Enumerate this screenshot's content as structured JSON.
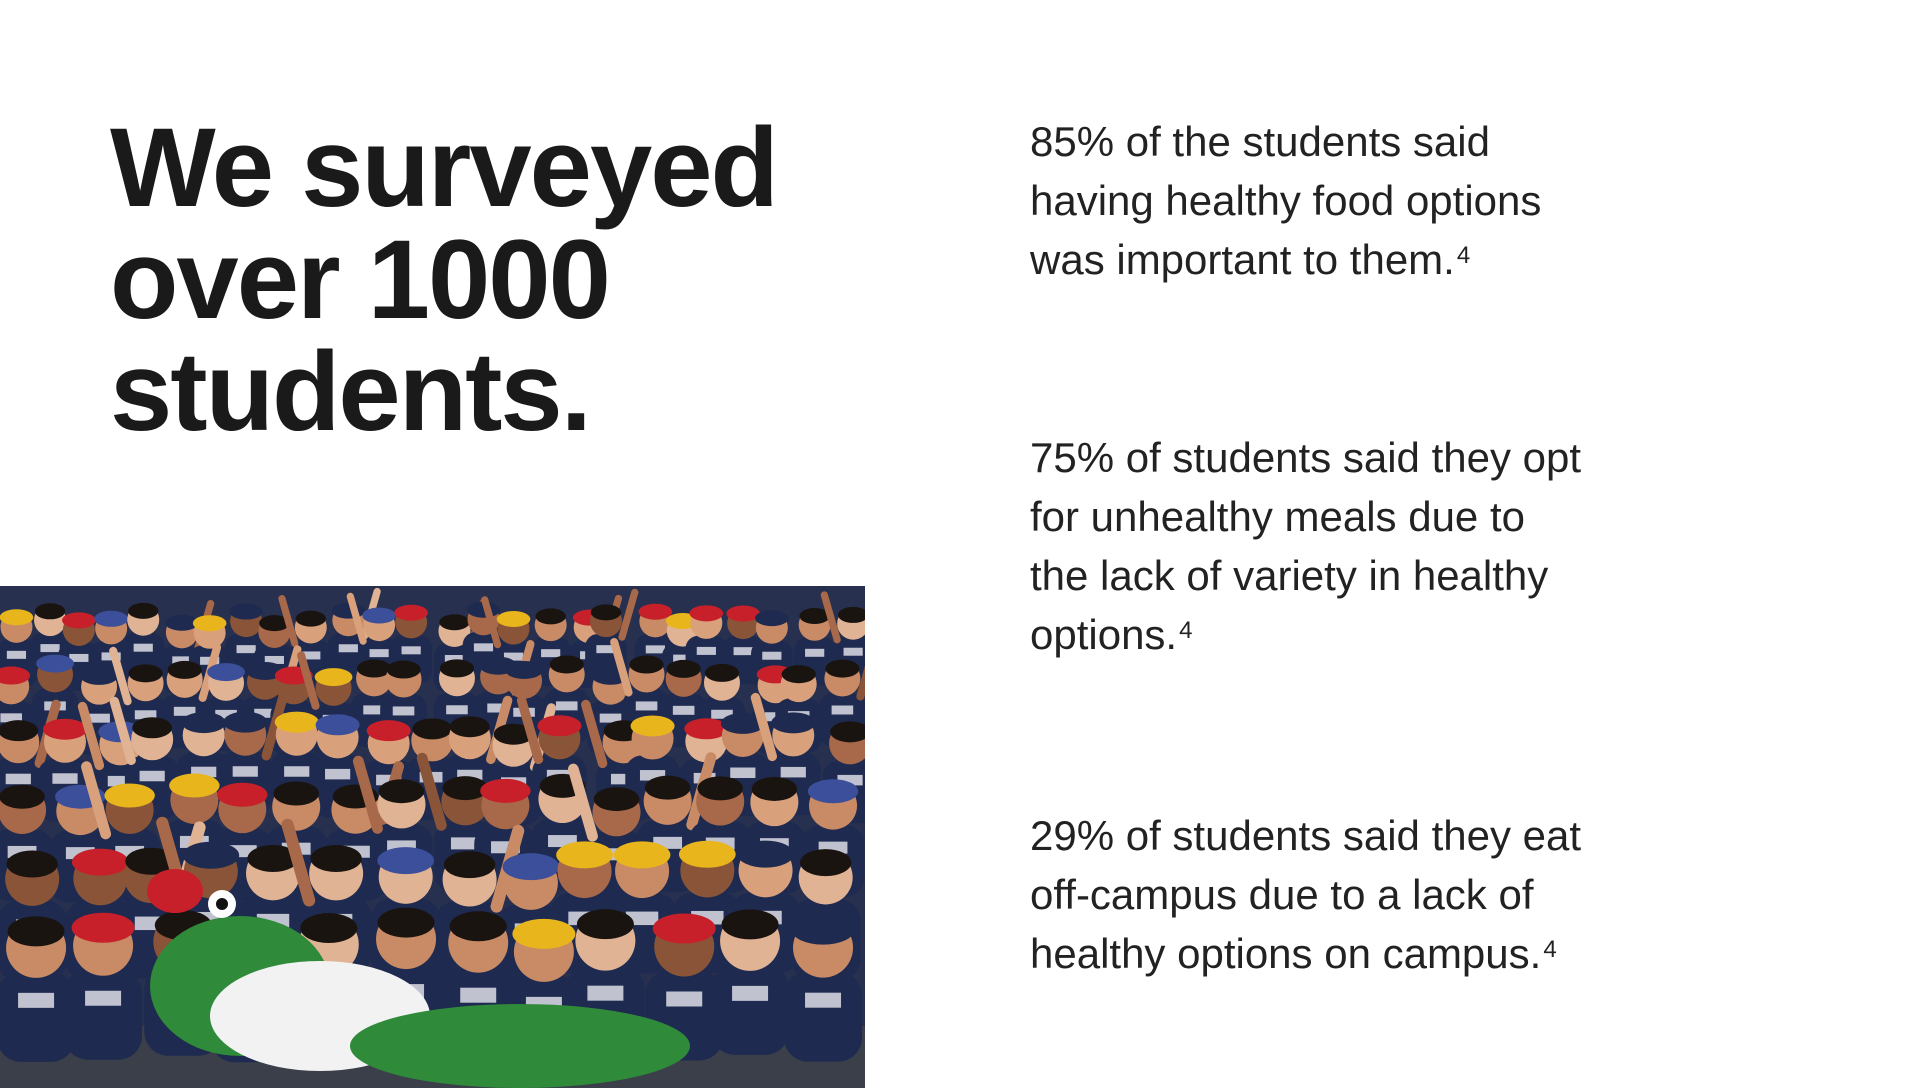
{
  "slide": {
    "headline_lines": [
      "We surveyed",
      "over 1000",
      "students."
    ]
  },
  "stats": [
    {
      "lines": [
        "85% of the students said",
        "having healthy food options",
        "was important to them."
      ],
      "footnote": "4"
    },
    {
      "lines": [
        "75% of students said they opt",
        "for unhealthy meals due to",
        "the lack of variety in healthy",
        "options."
      ],
      "footnote": "4"
    },
    {
      "lines": [
        "29% of students said they eat",
        "off-campus due to a lack of",
        "healthy options on campus."
      ],
      "footnote": "4"
    }
  ],
  "photo": {
    "subject": "crowd of cheering students in navy UHD t-shirts with a green alligator mascot",
    "colors": {
      "shirt": "#1e2a4f",
      "floor": "#3a3f4a",
      "skin": "#c98a66",
      "mascot": "#2f8a3a",
      "cap_red": "#c8202a",
      "cap_yellow": "#e8b51c"
    }
  }
}
